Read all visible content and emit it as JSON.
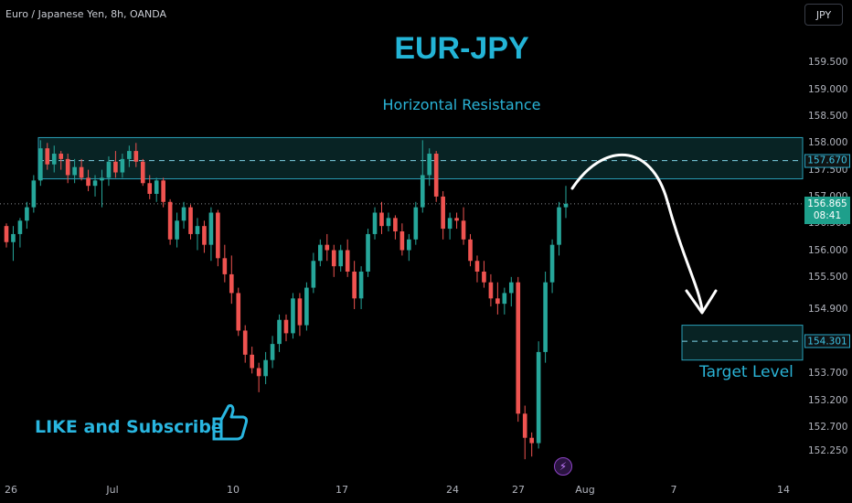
{
  "header": {
    "symbol_label": "Euro / Japanese Yen, 8h, OANDA",
    "currency_button": "JPY"
  },
  "overlays": {
    "title": "EUR-JPY",
    "resistance_label": "Horizontal Resistance",
    "target_label": "Target Level",
    "like_text": "LIKE and Subscribe",
    "thumb_icon": "thumbs-up-icon",
    "bolt_icon": "lightning-icon"
  },
  "price_badges": {
    "resistance": "157.670",
    "current_price": "156.865",
    "countdown": "08:41",
    "target": "154.301"
  },
  "colors": {
    "up": "#26a69a",
    "down": "#ef5350",
    "accent": "#2ab3d6",
    "zone": "#0f3f42"
  },
  "chart_data": {
    "type": "candlestick",
    "title": "EUR-JPY",
    "ylim": [
      152.0,
      159.95
    ],
    "y_ticks": [
      "159.500",
      "159.000",
      "158.500",
      "158.000",
      "157.500",
      "157.000",
      "156.500",
      "156.000",
      "155.500",
      "154.900",
      "153.700",
      "153.200",
      "152.700",
      "152.250"
    ],
    "x_ticks": [
      "26",
      "Jul",
      "10",
      "17",
      "24",
      "27",
      "Aug",
      "7",
      "14"
    ],
    "resistance_zone": [
      157.33,
      158.1
    ],
    "resistance_level": 157.67,
    "target_zone": [
      153.95,
      154.6
    ],
    "target_level": 154.301,
    "current_price": 156.865,
    "ohlc": [
      [
        156.45,
        156.5,
        156.05,
        156.15
      ],
      [
        156.15,
        156.45,
        155.8,
        156.3
      ],
      [
        156.3,
        156.6,
        156.05,
        156.55
      ],
      [
        156.55,
        156.9,
        156.4,
        156.8
      ],
      [
        156.8,
        157.4,
        156.7,
        157.3
      ],
      [
        157.3,
        158.05,
        157.2,
        157.9
      ],
      [
        157.9,
        158.0,
        157.5,
        157.6
      ],
      [
        157.6,
        157.95,
        157.45,
        157.8
      ],
      [
        157.8,
        157.85,
        157.5,
        157.7
      ],
      [
        157.7,
        157.8,
        157.25,
        157.4
      ],
      [
        157.4,
        157.7,
        157.25,
        157.55
      ],
      [
        157.55,
        157.7,
        157.3,
        157.35
      ],
      [
        157.35,
        157.5,
        157.1,
        157.2
      ],
      [
        157.2,
        157.4,
        157.0,
        157.3
      ],
      [
        157.3,
        157.5,
        156.8,
        157.35
      ],
      [
        157.35,
        157.75,
        157.2,
        157.65
      ],
      [
        157.65,
        157.85,
        157.35,
        157.45
      ],
      [
        157.45,
        157.8,
        157.35,
        157.7
      ],
      [
        157.7,
        157.95,
        157.55,
        157.85
      ],
      [
        157.85,
        158.0,
        157.55,
        157.65
      ],
      [
        157.65,
        157.7,
        157.2,
        157.25
      ],
      [
        157.25,
        157.4,
        156.95,
        157.05
      ],
      [
        157.05,
        157.35,
        156.9,
        157.3
      ],
      [
        157.3,
        157.35,
        156.8,
        156.9
      ],
      [
        156.9,
        156.95,
        156.1,
        156.2
      ],
      [
        156.2,
        156.7,
        156.05,
        156.55
      ],
      [
        156.55,
        156.9,
        156.4,
        156.8
      ],
      [
        156.8,
        156.85,
        156.2,
        156.3
      ],
      [
        156.3,
        156.6,
        156.0,
        156.45
      ],
      [
        156.45,
        156.55,
        155.95,
        156.1
      ],
      [
        156.1,
        156.8,
        155.8,
        156.7
      ],
      [
        156.7,
        156.75,
        155.7,
        155.85
      ],
      [
        155.85,
        156.1,
        155.4,
        155.55
      ],
      [
        155.55,
        155.9,
        155.0,
        155.2
      ],
      [
        155.2,
        155.3,
        154.4,
        154.5
      ],
      [
        154.5,
        154.6,
        153.9,
        154.05
      ],
      [
        154.05,
        154.2,
        153.7,
        153.8
      ],
      [
        153.8,
        153.9,
        153.35,
        153.65
      ],
      [
        153.65,
        154.1,
        153.5,
        153.95
      ],
      [
        153.95,
        154.4,
        153.8,
        154.25
      ],
      [
        154.25,
        154.8,
        154.1,
        154.7
      ],
      [
        154.7,
        154.8,
        154.3,
        154.45
      ],
      [
        154.45,
        155.2,
        154.35,
        155.1
      ],
      [
        155.1,
        155.2,
        154.4,
        154.6
      ],
      [
        154.6,
        155.4,
        154.5,
        155.3
      ],
      [
        155.3,
        155.95,
        155.2,
        155.8
      ],
      [
        155.8,
        156.2,
        155.7,
        156.1
      ],
      [
        156.1,
        156.3,
        155.8,
        156.0
      ],
      [
        156.0,
        156.1,
        155.5,
        155.7
      ],
      [
        155.7,
        156.1,
        155.6,
        156.0
      ],
      [
        156.0,
        156.2,
        155.5,
        155.6
      ],
      [
        155.6,
        155.8,
        154.9,
        155.1
      ],
      [
        155.1,
        155.7,
        154.9,
        155.6
      ],
      [
        155.6,
        156.4,
        155.5,
        156.3
      ],
      [
        156.3,
        156.8,
        156.2,
        156.7
      ],
      [
        156.7,
        156.9,
        156.3,
        156.45
      ],
      [
        156.45,
        156.7,
        156.35,
        156.6
      ],
      [
        156.6,
        156.65,
        156.2,
        156.35
      ],
      [
        156.35,
        156.5,
        155.9,
        156.0
      ],
      [
        156.0,
        156.3,
        155.8,
        156.2
      ],
      [
        156.2,
        156.9,
        156.1,
        156.8
      ],
      [
        156.8,
        158.05,
        156.7,
        157.4
      ],
      [
        157.4,
        157.9,
        157.2,
        157.8
      ],
      [
        157.8,
        157.85,
        156.9,
        157.0
      ],
      [
        157.0,
        157.1,
        156.2,
        156.4
      ],
      [
        156.4,
        156.7,
        156.2,
        156.6
      ],
      [
        156.6,
        156.7,
        156.4,
        156.55
      ],
      [
        156.55,
        156.8,
        156.1,
        156.2
      ],
      [
        156.2,
        156.3,
        155.7,
        155.8
      ],
      [
        155.8,
        155.9,
        155.4,
        155.6
      ],
      [
        155.6,
        155.8,
        155.3,
        155.4
      ],
      [
        155.4,
        155.55,
        154.95,
        155.1
      ],
      [
        155.1,
        155.4,
        154.8,
        155.0
      ],
      [
        155.0,
        155.3,
        154.8,
        155.2
      ],
      [
        155.2,
        155.5,
        154.95,
        155.4
      ],
      [
        155.4,
        155.5,
        152.8,
        152.95
      ],
      [
        152.95,
        153.1,
        152.1,
        152.5
      ],
      [
        152.5,
        152.6,
        152.15,
        152.4
      ],
      [
        152.4,
        154.3,
        152.3,
        154.1
      ],
      [
        154.1,
        155.6,
        153.9,
        155.4
      ],
      [
        155.4,
        156.2,
        155.2,
        156.1
      ],
      [
        156.1,
        156.9,
        155.9,
        156.8
      ],
      [
        156.8,
        157.2,
        156.6,
        156.865
      ]
    ]
  }
}
